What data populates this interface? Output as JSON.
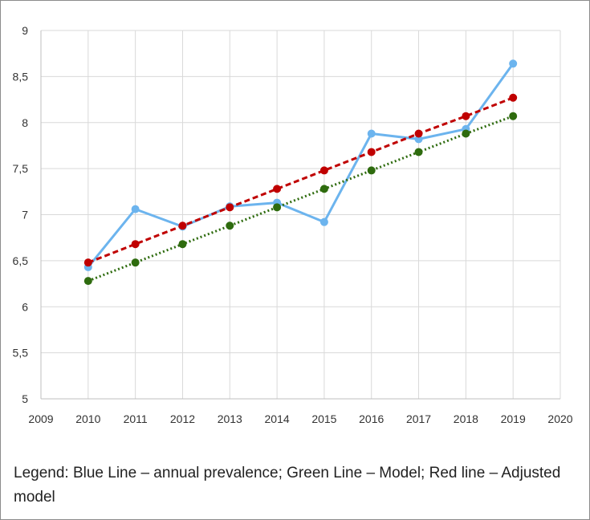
{
  "chart_data": {
    "type": "line",
    "title": "",
    "xlabel": "",
    "ylabel": "",
    "xlim": [
      2009,
      2020
    ],
    "ylim": [
      5,
      9
    ],
    "x_ticks": [
      "2009",
      "2010",
      "2011",
      "2012",
      "2013",
      "2014",
      "2015",
      "2016",
      "2017",
      "2018",
      "2019",
      "2020"
    ],
    "y_ticks": [
      "5",
      "5,5",
      "6",
      "6,5",
      "7",
      "7,5",
      "8",
      "8,5",
      "9"
    ],
    "grid": true,
    "x": [
      2010,
      2011,
      2012,
      2013,
      2014,
      2015,
      2016,
      2017,
      2018,
      2019
    ],
    "series": [
      {
        "name": "annual prevalence",
        "color": "#6cb4ee",
        "style": "solid",
        "values": [
          6.43,
          7.06,
          6.87,
          7.09,
          7.13,
          6.92,
          7.88,
          7.82,
          7.93,
          8.64
        ]
      },
      {
        "name": "Model",
        "color": "#2e6b0e",
        "style": "dotted",
        "values": [
          6.28,
          6.48,
          6.68,
          6.88,
          7.08,
          7.28,
          7.48,
          7.68,
          7.88,
          8.07
        ]
      },
      {
        "name": "Adjusted model",
        "color": "#c00000",
        "style": "dashed",
        "values": [
          6.48,
          6.68,
          6.88,
          7.08,
          7.28,
          7.48,
          7.68,
          7.88,
          8.07,
          8.27
        ]
      }
    ]
  },
  "legend": {
    "text": "Legend: Blue Line – annual prevalence; Green Line – Model; Red line – Adjusted model"
  }
}
